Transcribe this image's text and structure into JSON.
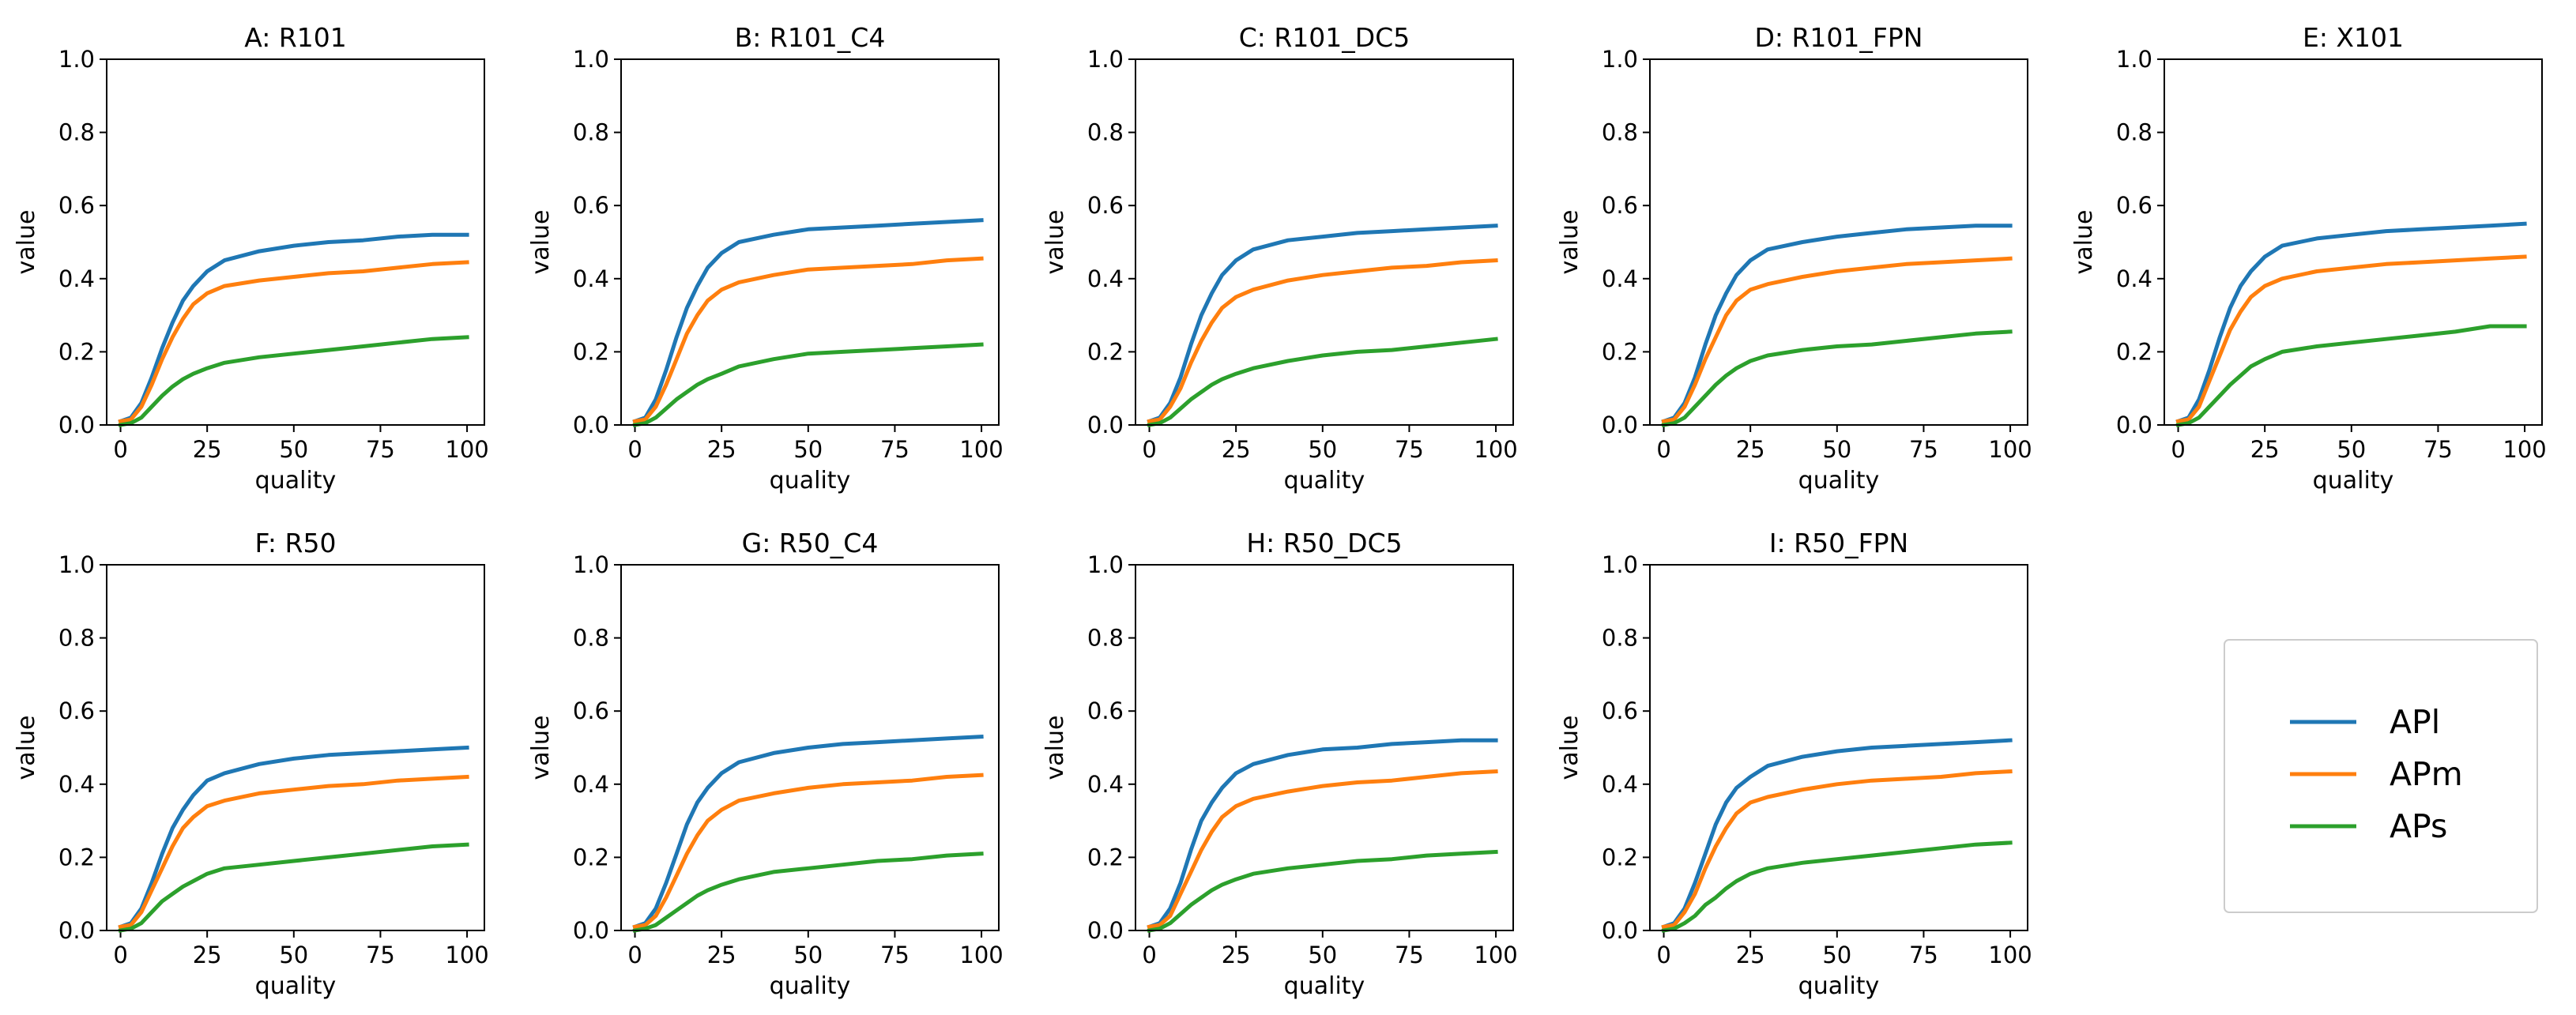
{
  "figure": {
    "colors": {
      "API": "#1f77b4",
      "APm": "#ff7f0e",
      "APs": "#2ca02c",
      "axes": "#000000",
      "legend_border": "#cccccc"
    }
  },
  "legend": {
    "position": "bottom-right",
    "entries": [
      "APl",
      "APm",
      "APs"
    ]
  },
  "chart_data": [
    {
      "type": "line",
      "title": "A: R101",
      "xlabel": "quality",
      "ylabel": "value",
      "xlim": [
        -4,
        105
      ],
      "ylim": [
        0,
        1
      ],
      "xticks": [
        "0",
        "25",
        "50",
        "75",
        "100"
      ],
      "yticks": [
        "0.0",
        "0.2",
        "0.4",
        "0.6",
        "0.8",
        "1.0"
      ],
      "x": [
        0,
        3,
        6,
        9,
        12,
        15,
        18,
        21,
        25,
        30,
        40,
        50,
        60,
        70,
        80,
        90,
        100
      ],
      "series": [
        {
          "name": "APl",
          "values": [
            0.01,
            0.02,
            0.06,
            0.13,
            0.21,
            0.28,
            0.34,
            0.38,
            0.42,
            0.45,
            0.475,
            0.49,
            0.5,
            0.505,
            0.515,
            0.52,
            0.52
          ]
        },
        {
          "name": "APm",
          "values": [
            0.01,
            0.015,
            0.05,
            0.11,
            0.18,
            0.24,
            0.29,
            0.33,
            0.36,
            0.38,
            0.395,
            0.405,
            0.415,
            0.42,
            0.43,
            0.44,
            0.445
          ]
        },
        {
          "name": "APs",
          "values": [
            0.0,
            0.005,
            0.02,
            0.05,
            0.08,
            0.105,
            0.125,
            0.14,
            0.155,
            0.17,
            0.185,
            0.195,
            0.205,
            0.215,
            0.225,
            0.235,
            0.24
          ]
        }
      ]
    },
    {
      "type": "line",
      "title": "B: R101_C4",
      "xlabel": "quality",
      "ylabel": "value",
      "xlim": [
        -4,
        105
      ],
      "ylim": [
        0,
        1
      ],
      "xticks": [
        "0",
        "25",
        "50",
        "75",
        "100"
      ],
      "yticks": [
        "0.0",
        "0.2",
        "0.4",
        "0.6",
        "0.8",
        "1.0"
      ],
      "x": [
        0,
        3,
        6,
        9,
        12,
        15,
        18,
        21,
        25,
        30,
        40,
        50,
        60,
        70,
        80,
        90,
        100
      ],
      "series": [
        {
          "name": "APl",
          "values": [
            0.01,
            0.02,
            0.07,
            0.15,
            0.24,
            0.32,
            0.38,
            0.43,
            0.47,
            0.5,
            0.52,
            0.535,
            0.54,
            0.545,
            0.55,
            0.555,
            0.56
          ]
        },
        {
          "name": "APm",
          "values": [
            0.01,
            0.015,
            0.05,
            0.11,
            0.18,
            0.25,
            0.3,
            0.34,
            0.37,
            0.39,
            0.41,
            0.425,
            0.43,
            0.435,
            0.44,
            0.45,
            0.455
          ]
        },
        {
          "name": "APs",
          "values": [
            0.0,
            0.005,
            0.02,
            0.045,
            0.07,
            0.09,
            0.11,
            0.125,
            0.14,
            0.16,
            0.18,
            0.195,
            0.2,
            0.205,
            0.21,
            0.215,
            0.22
          ]
        }
      ]
    },
    {
      "type": "line",
      "title": "C: R101_DC5",
      "xlabel": "quality",
      "ylabel": "value",
      "xlim": [
        -4,
        105
      ],
      "ylim": [
        0,
        1
      ],
      "xticks": [
        "0",
        "25",
        "50",
        "75",
        "100"
      ],
      "yticks": [
        "0.0",
        "0.2",
        "0.4",
        "0.6",
        "0.8",
        "1.0"
      ],
      "x": [
        0,
        3,
        6,
        9,
        12,
        15,
        18,
        21,
        25,
        30,
        40,
        50,
        60,
        70,
        80,
        90,
        100
      ],
      "series": [
        {
          "name": "APl",
          "values": [
            0.01,
            0.02,
            0.06,
            0.13,
            0.22,
            0.3,
            0.36,
            0.41,
            0.45,
            0.48,
            0.505,
            0.515,
            0.525,
            0.53,
            0.535,
            0.54,
            0.545
          ]
        },
        {
          "name": "APm",
          "values": [
            0.01,
            0.015,
            0.05,
            0.1,
            0.17,
            0.23,
            0.28,
            0.32,
            0.35,
            0.37,
            0.395,
            0.41,
            0.42,
            0.43,
            0.435,
            0.445,
            0.45
          ]
        },
        {
          "name": "APs",
          "values": [
            0.0,
            0.005,
            0.02,
            0.045,
            0.07,
            0.09,
            0.11,
            0.125,
            0.14,
            0.155,
            0.175,
            0.19,
            0.2,
            0.205,
            0.215,
            0.225,
            0.235
          ]
        }
      ]
    },
    {
      "type": "line",
      "title": "D: R101_FPN",
      "xlabel": "quality",
      "ylabel": "value",
      "xlim": [
        -4,
        105
      ],
      "ylim": [
        0,
        1
      ],
      "xticks": [
        "0",
        "25",
        "50",
        "75",
        "100"
      ],
      "yticks": [
        "0.0",
        "0.2",
        "0.4",
        "0.6",
        "0.8",
        "1.0"
      ],
      "x": [
        0,
        3,
        6,
        9,
        12,
        15,
        18,
        21,
        25,
        30,
        40,
        50,
        60,
        70,
        80,
        90,
        100
      ],
      "series": [
        {
          "name": "APl",
          "values": [
            0.01,
            0.02,
            0.06,
            0.13,
            0.22,
            0.3,
            0.36,
            0.41,
            0.45,
            0.48,
            0.5,
            0.515,
            0.525,
            0.535,
            0.54,
            0.545,
            0.545
          ]
        },
        {
          "name": "APm",
          "values": [
            0.01,
            0.015,
            0.05,
            0.11,
            0.18,
            0.24,
            0.3,
            0.34,
            0.37,
            0.385,
            0.405,
            0.42,
            0.43,
            0.44,
            0.445,
            0.45,
            0.455
          ]
        },
        {
          "name": "APs",
          "values": [
            0.0,
            0.005,
            0.02,
            0.05,
            0.08,
            0.11,
            0.135,
            0.155,
            0.175,
            0.19,
            0.205,
            0.215,
            0.22,
            0.23,
            0.24,
            0.25,
            0.255
          ]
        }
      ]
    },
    {
      "type": "line",
      "title": "E: X101",
      "xlabel": "quality",
      "ylabel": "value",
      "xlim": [
        -4,
        105
      ],
      "ylim": [
        0,
        1
      ],
      "xticks": [
        "0",
        "25",
        "50",
        "75",
        "100"
      ],
      "yticks": [
        "0.0",
        "0.2",
        "0.4",
        "0.6",
        "0.8",
        "1.0"
      ],
      "x": [
        0,
        3,
        6,
        9,
        12,
        15,
        18,
        21,
        25,
        30,
        40,
        50,
        60,
        70,
        80,
        90,
        100
      ],
      "series": [
        {
          "name": "APl",
          "values": [
            0.01,
            0.02,
            0.07,
            0.15,
            0.24,
            0.32,
            0.38,
            0.42,
            0.46,
            0.49,
            0.51,
            0.52,
            0.53,
            0.535,
            0.54,
            0.545,
            0.55
          ]
        },
        {
          "name": "APm",
          "values": [
            0.01,
            0.015,
            0.05,
            0.12,
            0.19,
            0.26,
            0.31,
            0.35,
            0.38,
            0.4,
            0.42,
            0.43,
            0.44,
            0.445,
            0.45,
            0.455,
            0.46
          ]
        },
        {
          "name": "APs",
          "values": [
            0.0,
            0.005,
            0.02,
            0.05,
            0.08,
            0.11,
            0.135,
            0.16,
            0.18,
            0.2,
            0.215,
            0.225,
            0.235,
            0.245,
            0.255,
            0.27,
            0.27
          ]
        }
      ]
    },
    {
      "type": "line",
      "title": "F: R50",
      "xlabel": "quality",
      "ylabel": "value",
      "xlim": [
        -4,
        105
      ],
      "ylim": [
        0,
        1
      ],
      "xticks": [
        "0",
        "25",
        "50",
        "75",
        "100"
      ],
      "yticks": [
        "0.0",
        "0.2",
        "0.4",
        "0.6",
        "0.8",
        "1.0"
      ],
      "x": [
        0,
        3,
        6,
        9,
        12,
        15,
        18,
        21,
        25,
        30,
        40,
        50,
        60,
        70,
        80,
        90,
        100
      ],
      "series": [
        {
          "name": "APl",
          "values": [
            0.01,
            0.02,
            0.06,
            0.13,
            0.21,
            0.28,
            0.33,
            0.37,
            0.41,
            0.43,
            0.455,
            0.47,
            0.48,
            0.485,
            0.49,
            0.495,
            0.5
          ]
        },
        {
          "name": "APm",
          "values": [
            0.01,
            0.015,
            0.05,
            0.11,
            0.17,
            0.23,
            0.28,
            0.31,
            0.34,
            0.355,
            0.375,
            0.385,
            0.395,
            0.4,
            0.41,
            0.415,
            0.42
          ]
        },
        {
          "name": "APs",
          "values": [
            0.0,
            0.005,
            0.02,
            0.05,
            0.08,
            0.1,
            0.12,
            0.135,
            0.155,
            0.17,
            0.18,
            0.19,
            0.2,
            0.21,
            0.22,
            0.23,
            0.235
          ]
        }
      ]
    },
    {
      "type": "line",
      "title": "G: R50_C4",
      "xlabel": "quality",
      "ylabel": "value",
      "xlim": [
        -4,
        105
      ],
      "ylim": [
        0,
        1
      ],
      "xticks": [
        "0",
        "25",
        "50",
        "75",
        "100"
      ],
      "yticks": [
        "0.0",
        "0.2",
        "0.4",
        "0.6",
        "0.8",
        "1.0"
      ],
      "x": [
        0,
        3,
        6,
        9,
        12,
        15,
        18,
        21,
        25,
        30,
        40,
        50,
        60,
        70,
        80,
        90,
        100
      ],
      "series": [
        {
          "name": "APl",
          "values": [
            0.01,
            0.02,
            0.06,
            0.13,
            0.21,
            0.29,
            0.35,
            0.39,
            0.43,
            0.46,
            0.485,
            0.5,
            0.51,
            0.515,
            0.52,
            0.525,
            0.53
          ]
        },
        {
          "name": "APm",
          "values": [
            0.01,
            0.015,
            0.04,
            0.09,
            0.15,
            0.21,
            0.26,
            0.3,
            0.33,
            0.355,
            0.375,
            0.39,
            0.4,
            0.405,
            0.41,
            0.42,
            0.425
          ]
        },
        {
          "name": "APs",
          "values": [
            0.0,
            0.005,
            0.015,
            0.035,
            0.055,
            0.075,
            0.095,
            0.11,
            0.125,
            0.14,
            0.16,
            0.17,
            0.18,
            0.19,
            0.195,
            0.205,
            0.21
          ]
        }
      ]
    },
    {
      "type": "line",
      "title": "H: R50_DC5",
      "xlabel": "quality",
      "ylabel": "value",
      "xlim": [
        -4,
        105
      ],
      "ylim": [
        0,
        1
      ],
      "xticks": [
        "0",
        "25",
        "50",
        "75",
        "100"
      ],
      "yticks": [
        "0.0",
        "0.2",
        "0.4",
        "0.6",
        "0.8",
        "1.0"
      ],
      "x": [
        0,
        3,
        6,
        9,
        12,
        15,
        18,
        21,
        25,
        30,
        40,
        50,
        60,
        70,
        80,
        90,
        100
      ],
      "series": [
        {
          "name": "APl",
          "values": [
            0.01,
            0.02,
            0.06,
            0.13,
            0.22,
            0.3,
            0.35,
            0.39,
            0.43,
            0.455,
            0.48,
            0.495,
            0.5,
            0.51,
            0.515,
            0.52,
            0.52
          ]
        },
        {
          "name": "APm",
          "values": [
            0.01,
            0.015,
            0.04,
            0.1,
            0.16,
            0.22,
            0.27,
            0.31,
            0.34,
            0.36,
            0.38,
            0.395,
            0.405,
            0.41,
            0.42,
            0.43,
            0.435
          ]
        },
        {
          "name": "APs",
          "values": [
            0.0,
            0.005,
            0.02,
            0.045,
            0.07,
            0.09,
            0.11,
            0.125,
            0.14,
            0.155,
            0.17,
            0.18,
            0.19,
            0.195,
            0.205,
            0.21,
            0.215
          ]
        }
      ]
    },
    {
      "type": "line",
      "title": "I: R50_FPN",
      "xlabel": "quality",
      "ylabel": "value",
      "xlim": [
        -4,
        105
      ],
      "ylim": [
        0,
        1
      ],
      "xticks": [
        "0",
        "25",
        "50",
        "75",
        "100"
      ],
      "yticks": [
        "0.0",
        "0.2",
        "0.4",
        "0.6",
        "0.8",
        "1.0"
      ],
      "x": [
        0,
        3,
        6,
        9,
        12,
        15,
        18,
        21,
        25,
        30,
        40,
        50,
        60,
        70,
        80,
        90,
        100
      ],
      "series": [
        {
          "name": "APl",
          "values": [
            0.01,
            0.02,
            0.06,
            0.13,
            0.21,
            0.29,
            0.35,
            0.39,
            0.42,
            0.45,
            0.475,
            0.49,
            0.5,
            0.505,
            0.51,
            0.515,
            0.52
          ]
        },
        {
          "name": "APm",
          "values": [
            0.01,
            0.015,
            0.05,
            0.1,
            0.17,
            0.23,
            0.28,
            0.32,
            0.35,
            0.365,
            0.385,
            0.4,
            0.41,
            0.415,
            0.42,
            0.43,
            0.435
          ]
        },
        {
          "name": "APs",
          "values": [
            0.0,
            0.005,
            0.02,
            0.04,
            0.07,
            0.09,
            0.115,
            0.135,
            0.155,
            0.17,
            0.185,
            0.195,
            0.205,
            0.215,
            0.225,
            0.235,
            0.24
          ]
        }
      ]
    }
  ]
}
